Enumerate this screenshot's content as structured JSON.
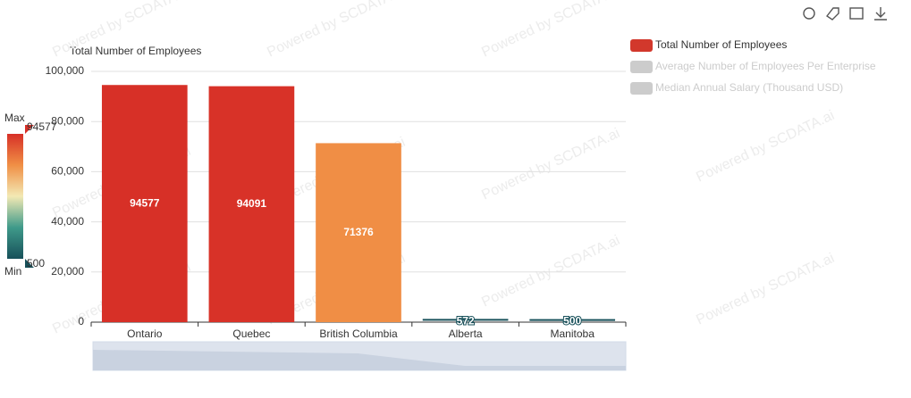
{
  "chart_data": {
    "type": "bar",
    "y_axis_label": "Total Number of Employees",
    "categories": [
      "Ontario",
      "Quebec",
      "British Columbia",
      "Alberta",
      "Manitoba"
    ],
    "values": [
      94577,
      94091,
      71376,
      572,
      500
    ],
    "ylim": [
      0,
      100000
    ],
    "yticks": [
      0,
      {
        "value": 20000,
        "label": "20,000"
      },
      {
        "value": 40000,
        "label": "40,000"
      },
      {
        "value": 60000,
        "label": "60,000"
      },
      {
        "value": 80000,
        "label": "80,000"
      },
      {
        "value": 100000,
        "label": "100,000"
      }
    ],
    "grid": true,
    "legend": [
      {
        "name": "Total Number of Employees",
        "color": "#d2382c",
        "selected": true
      },
      {
        "name": "Average Number of Employees Per Enterprise",
        "color": "#cccccc",
        "selected": false
      },
      {
        "name": "Median Annual Salary (Thousand USD)",
        "color": "#cccccc",
        "selected": false
      }
    ],
    "visual_map": {
      "min": 500,
      "max": 94577,
      "max_label": "Max",
      "min_label": "Min",
      "colors": [
        "#17505a",
        "#3f9a8a",
        "#f3e9b4",
        "#f08f45",
        "#d73027"
      ]
    },
    "watermark": "Powered by SCDATA.ai"
  }
}
